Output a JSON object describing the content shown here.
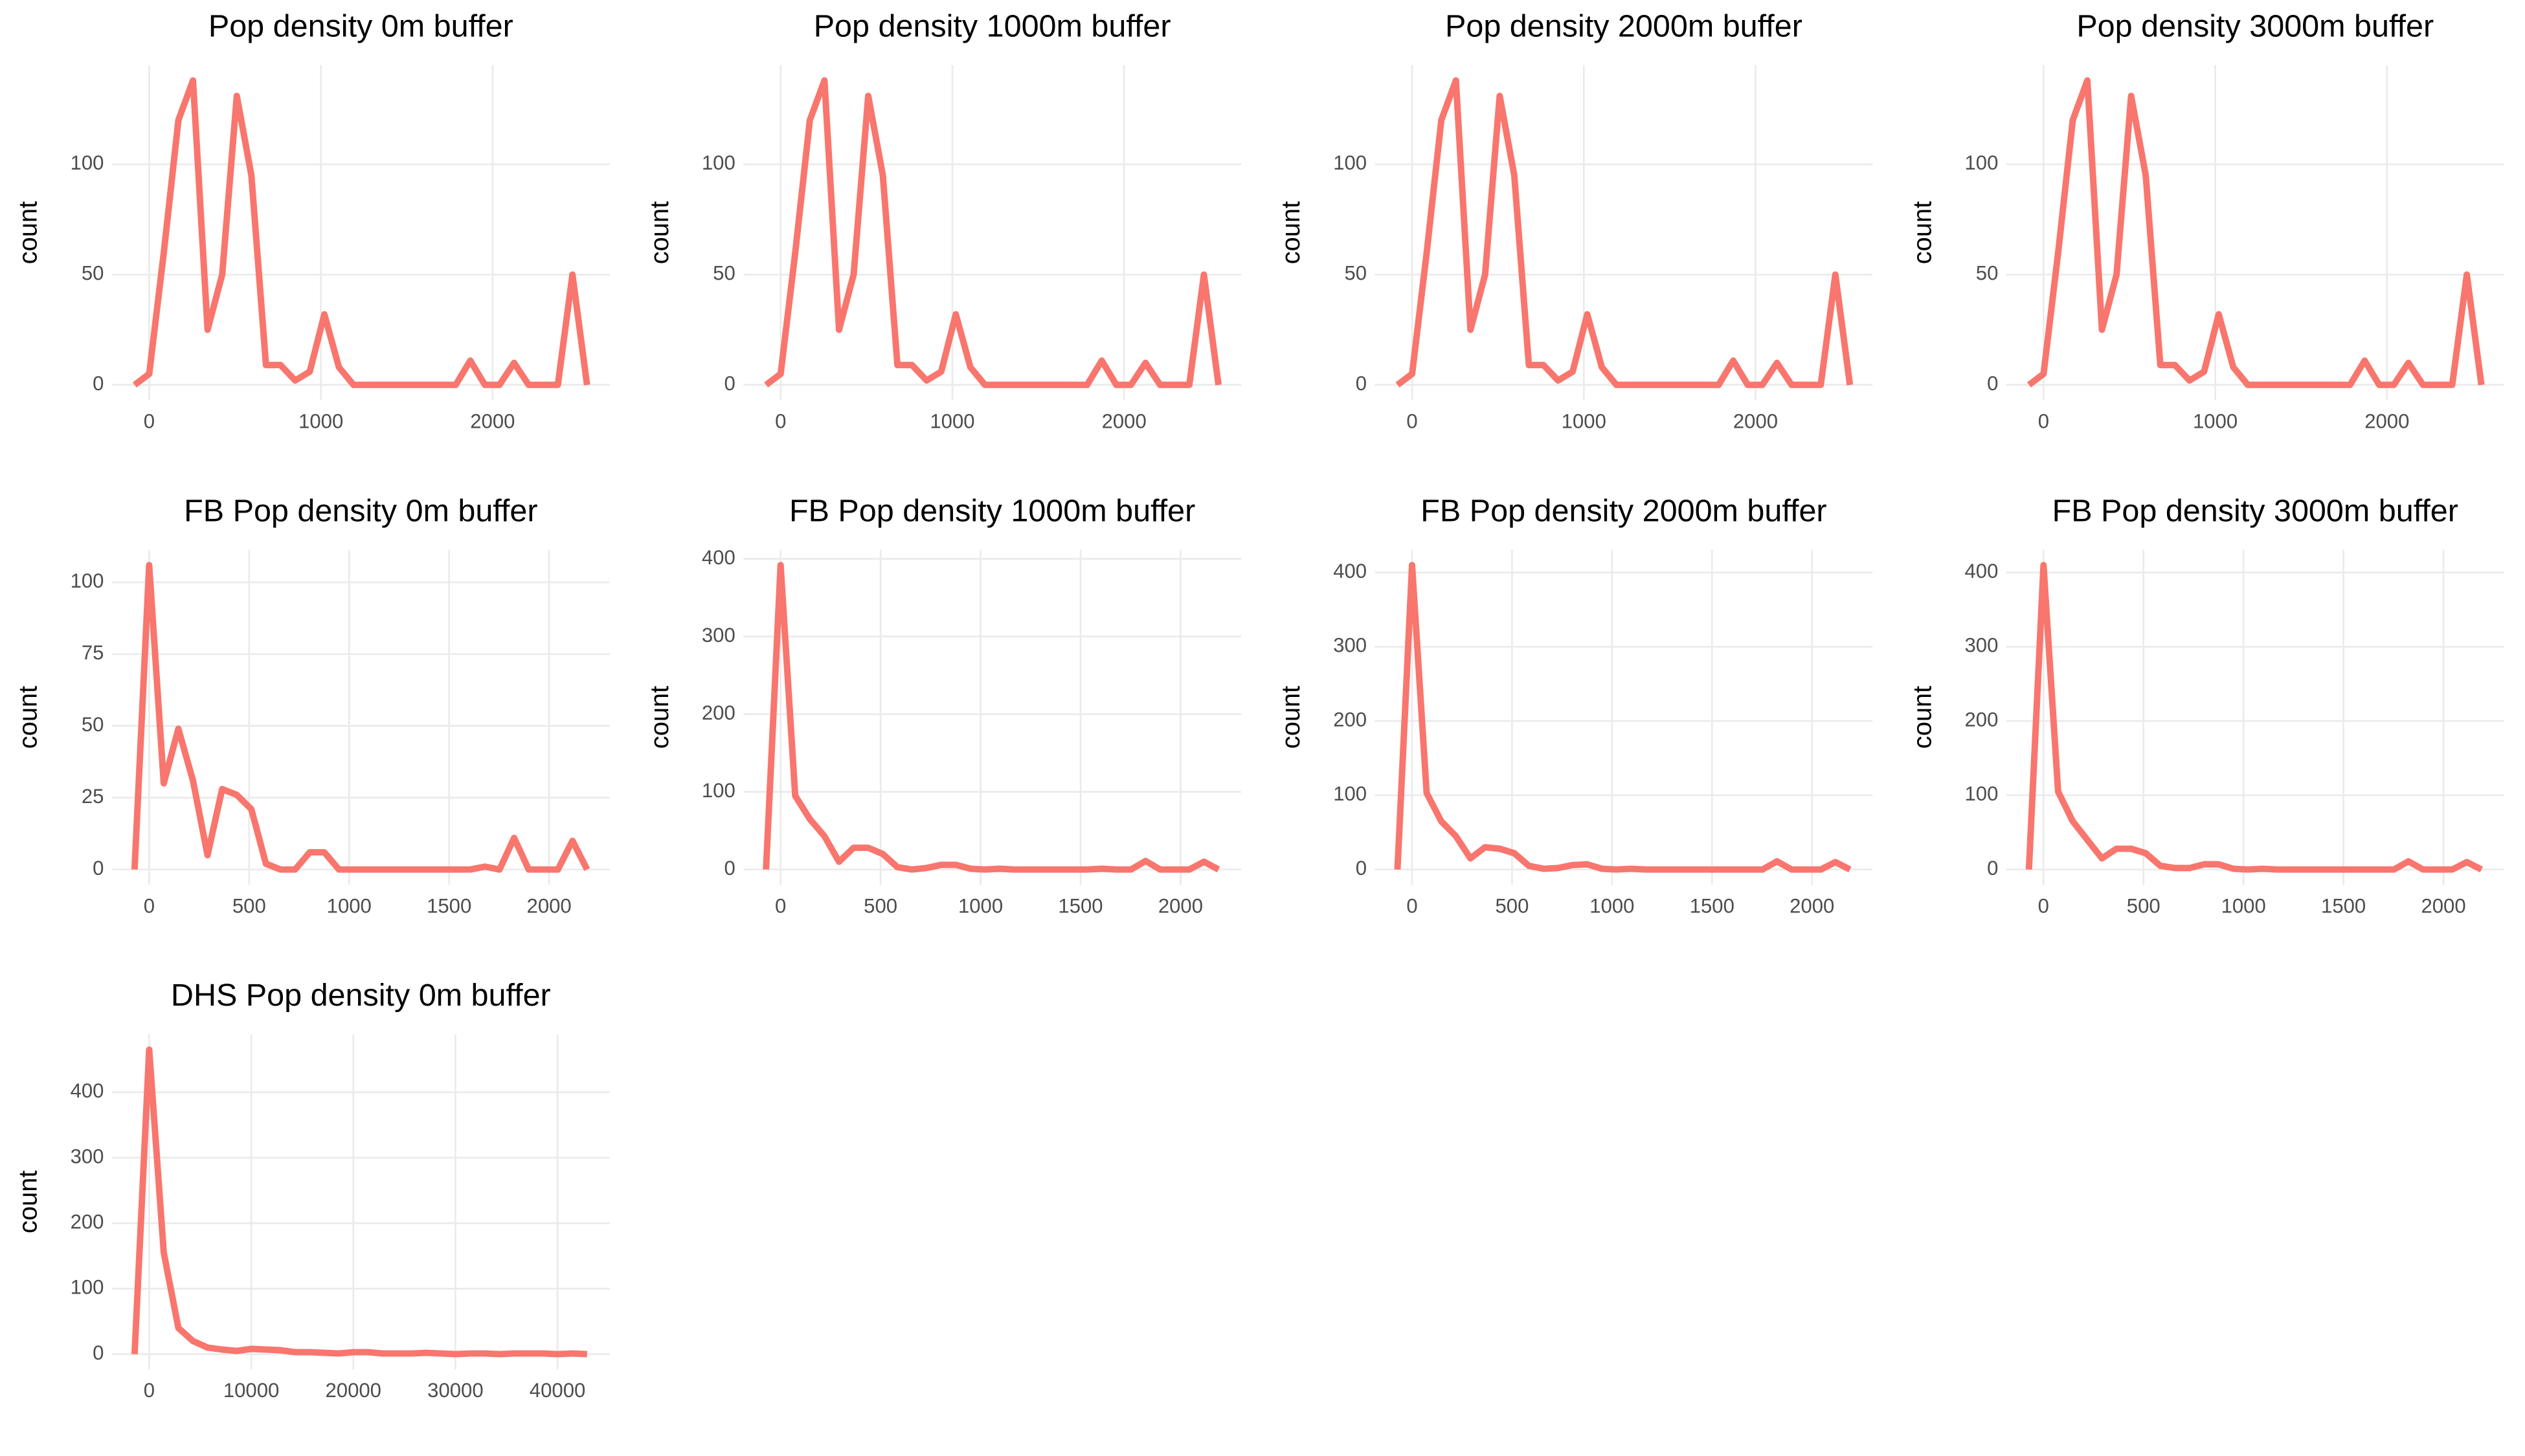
{
  "chart_data": [
    {
      "type": "line",
      "title": "Pop density 0m buffer",
      "ylabel": "count",
      "color": "#f8766d",
      "grid": true,
      "x": [
        -85,
        0,
        85,
        170,
        255,
        340,
        425,
        510,
        595,
        680,
        765,
        850,
        935,
        1020,
        1105,
        1190,
        1275,
        1360,
        1445,
        1530,
        1615,
        1700,
        1785,
        1870,
        1955,
        2040,
        2125,
        2210,
        2295,
        2380,
        2465,
        2550
      ],
      "values": [
        0,
        5,
        60,
        120,
        138,
        25,
        50,
        131,
        95,
        9,
        9,
        2,
        6,
        32,
        8,
        0,
        0,
        0,
        0,
        0,
        0,
        0,
        0,
        11,
        0,
        0,
        10,
        0,
        0,
        0,
        50,
        0
      ],
      "xlim": [
        -217,
        2682
      ],
      "xticks": [
        0,
        1000,
        2000
      ],
      "ylim": [
        -6.9,
        144.9
      ],
      "yticks": [
        0,
        50,
        100
      ]
    },
    {
      "type": "line",
      "title": "Pop density 1000m buffer",
      "ylabel": "count",
      "color": "#f8766d",
      "grid": true,
      "x": [
        -85,
        0,
        85,
        170,
        255,
        340,
        425,
        510,
        595,
        680,
        765,
        850,
        935,
        1020,
        1105,
        1190,
        1275,
        1360,
        1445,
        1530,
        1615,
        1700,
        1785,
        1870,
        1955,
        2040,
        2125,
        2210,
        2295,
        2380,
        2465,
        2550
      ],
      "values": [
        0,
        5,
        60,
        120,
        138,
        25,
        50,
        131,
        95,
        9,
        9,
        2,
        6,
        32,
        8,
        0,
        0,
        0,
        0,
        0,
        0,
        0,
        0,
        11,
        0,
        0,
        10,
        0,
        0,
        0,
        50,
        0
      ],
      "xlim": [
        -217,
        2682
      ],
      "xticks": [
        0,
        1000,
        2000
      ],
      "ylim": [
        -6.9,
        144.9
      ],
      "yticks": [
        0,
        50,
        100
      ]
    },
    {
      "type": "line",
      "title": "Pop density 2000m buffer",
      "ylabel": "count",
      "color": "#f8766d",
      "grid": true,
      "x": [
        -85,
        0,
        85,
        170,
        255,
        340,
        425,
        510,
        595,
        680,
        765,
        850,
        935,
        1020,
        1105,
        1190,
        1275,
        1360,
        1445,
        1530,
        1615,
        1700,
        1785,
        1870,
        1955,
        2040,
        2125,
        2210,
        2295,
        2380,
        2465,
        2550
      ],
      "values": [
        0,
        5,
        60,
        120,
        138,
        25,
        50,
        131,
        95,
        9,
        9,
        2,
        6,
        32,
        8,
        0,
        0,
        0,
        0,
        0,
        0,
        0,
        0,
        11,
        0,
        0,
        10,
        0,
        0,
        0,
        50,
        0
      ],
      "xlim": [
        -217,
        2682
      ],
      "xticks": [
        0,
        1000,
        2000
      ],
      "ylim": [
        -6.9,
        144.9
      ],
      "yticks": [
        0,
        50,
        100
      ]
    },
    {
      "type": "line",
      "title": "Pop density 3000m buffer",
      "ylabel": "count",
      "color": "#f8766d",
      "grid": true,
      "x": [
        -85,
        0,
        85,
        170,
        255,
        340,
        425,
        510,
        595,
        680,
        765,
        850,
        935,
        1020,
        1105,
        1190,
        1275,
        1360,
        1445,
        1530,
        1615,
        1700,
        1785,
        1870,
        1955,
        2040,
        2125,
        2210,
        2295,
        2380,
        2465,
        2550
      ],
      "values": [
        0,
        5,
        60,
        120,
        138,
        25,
        50,
        131,
        95,
        9,
        9,
        2,
        6,
        32,
        8,
        0,
        0,
        0,
        0,
        0,
        0,
        0,
        0,
        11,
        0,
        0,
        10,
        0,
        0,
        0,
        50,
        0
      ],
      "xlim": [
        -217,
        2682
      ],
      "xticks": [
        0,
        1000,
        2000
      ],
      "ylim": [
        -6.9,
        144.9
      ],
      "yticks": [
        0,
        50,
        100
      ]
    },
    {
      "type": "line",
      "title": "FB Pop density 0m buffer",
      "ylabel": "count",
      "color": "#f8766d",
      "grid": true,
      "x": [
        -73,
        0,
        73,
        146,
        219,
        292,
        365,
        438,
        511,
        584,
        657,
        730,
        803,
        876,
        949,
        1022,
        1095,
        1168,
        1241,
        1314,
        1387,
        1460,
        1533,
        1606,
        1679,
        1752,
        1825,
        1898,
        1971,
        2044,
        2117,
        2190
      ],
      "values": [
        0,
        106,
        30,
        49,
        31,
        5,
        28,
        26,
        21,
        2,
        0,
        0,
        6,
        6,
        0,
        0,
        0,
        0,
        0,
        0,
        0,
        0,
        0,
        0,
        1,
        0,
        11,
        0,
        0,
        0,
        10,
        0
      ],
      "xlim": [
        -186,
        2303
      ],
      "xticks": [
        0,
        500,
        1000,
        1500,
        2000
      ],
      "ylim": [
        -5.3,
        111.3
      ],
      "yticks": [
        0,
        25,
        50,
        75,
        100
      ]
    },
    {
      "type": "line",
      "title": "FB Pop density 1000m buffer",
      "ylabel": "count",
      "color": "#f8766d",
      "grid": true,
      "x": [
        -73,
        0,
        73,
        146,
        219,
        292,
        365,
        438,
        511,
        584,
        657,
        730,
        803,
        876,
        949,
        1022,
        1095,
        1168,
        1241,
        1314,
        1387,
        1460,
        1533,
        1606,
        1679,
        1752,
        1825,
        1898,
        1971,
        2044,
        2117,
        2190
      ],
      "values": [
        0,
        392,
        95,
        65,
        43,
        10,
        28,
        28,
        20,
        3,
        0,
        2,
        6,
        6,
        1,
        0,
        1,
        0,
        0,
        0,
        0,
        0,
        0,
        1,
        0,
        0,
        11,
        0,
        0,
        0,
        10,
        0
      ],
      "xlim": [
        -186,
        2303
      ],
      "xticks": [
        0,
        500,
        1000,
        1500,
        2000
      ],
      "ylim": [
        -19.6,
        411.6
      ],
      "yticks": [
        0,
        100,
        200,
        300,
        400
      ]
    },
    {
      "type": "line",
      "title": "FB Pop density 2000m buffer",
      "ylabel": "count",
      "color": "#f8766d",
      "grid": true,
      "x": [
        -73,
        0,
        73,
        146,
        219,
        292,
        365,
        438,
        511,
        584,
        657,
        730,
        803,
        876,
        949,
        1022,
        1095,
        1168,
        1241,
        1314,
        1387,
        1460,
        1533,
        1606,
        1679,
        1752,
        1825,
        1898,
        1971,
        2044,
        2117,
        2190
      ],
      "values": [
        0,
        410,
        103,
        65,
        45,
        15,
        30,
        28,
        22,
        5,
        1,
        2,
        6,
        7,
        1,
        0,
        1,
        0,
        0,
        0,
        0,
        0,
        0,
        0,
        0,
        0,
        11,
        0,
        0,
        0,
        10,
        0
      ],
      "xlim": [
        -186,
        2303
      ],
      "xticks": [
        0,
        500,
        1000,
        1500,
        2000
      ],
      "ylim": [
        -20.5,
        430.5
      ],
      "yticks": [
        0,
        100,
        200,
        300,
        400
      ]
    },
    {
      "type": "line",
      "title": "FB Pop density 3000m buffer",
      "ylabel": "count",
      "color": "#f8766d",
      "grid": true,
      "x": [
        -73,
        0,
        73,
        146,
        219,
        292,
        365,
        438,
        511,
        584,
        657,
        730,
        803,
        876,
        949,
        1022,
        1095,
        1168,
        1241,
        1314,
        1387,
        1460,
        1533,
        1606,
        1679,
        1752,
        1825,
        1898,
        1971,
        2044,
        2117,
        2190
      ],
      "values": [
        0,
        410,
        105,
        65,
        40,
        15,
        28,
        28,
        22,
        5,
        2,
        2,
        7,
        7,
        1,
        0,
        1,
        0,
        0,
        0,
        0,
        0,
        0,
        0,
        0,
        0,
        11,
        0,
        0,
        0,
        10,
        0
      ],
      "xlim": [
        -186,
        2303
      ],
      "xticks": [
        0,
        500,
        1000,
        1500,
        2000
      ],
      "ylim": [
        -20.5,
        430.5
      ],
      "yticks": [
        0,
        100,
        200,
        300,
        400
      ]
    },
    {
      "type": "line",
      "title": "DHS Pop density 0m buffer",
      "ylabel": "count",
      "color": "#f8766d",
      "grid": true,
      "x": [
        -1430,
        0,
        1430,
        2860,
        4290,
        5720,
        7150,
        8580,
        10010,
        11440,
        12870,
        14300,
        15730,
        17160,
        18590,
        20020,
        21450,
        22880,
        24310,
        25740,
        27170,
        28600,
        30030,
        31460,
        32890,
        34320,
        35750,
        37180,
        38610,
        40040,
        41470,
        42900
      ],
      "values": [
        0,
        465,
        155,
        40,
        20,
        10,
        7,
        5,
        8,
        7,
        6,
        3,
        3,
        2,
        1,
        3,
        3,
        1,
        1,
        1,
        2,
        1,
        0,
        1,
        1,
        0,
        1,
        1,
        1,
        0,
        1,
        0
      ],
      "xlim": [
        -3646,
        45116
      ],
      "xticks": [
        0,
        10000,
        20000,
        30000,
        40000
      ],
      "ylim": [
        -23.25,
        488.25
      ],
      "yticks": [
        0,
        100,
        200,
        300,
        400
      ]
    }
  ]
}
